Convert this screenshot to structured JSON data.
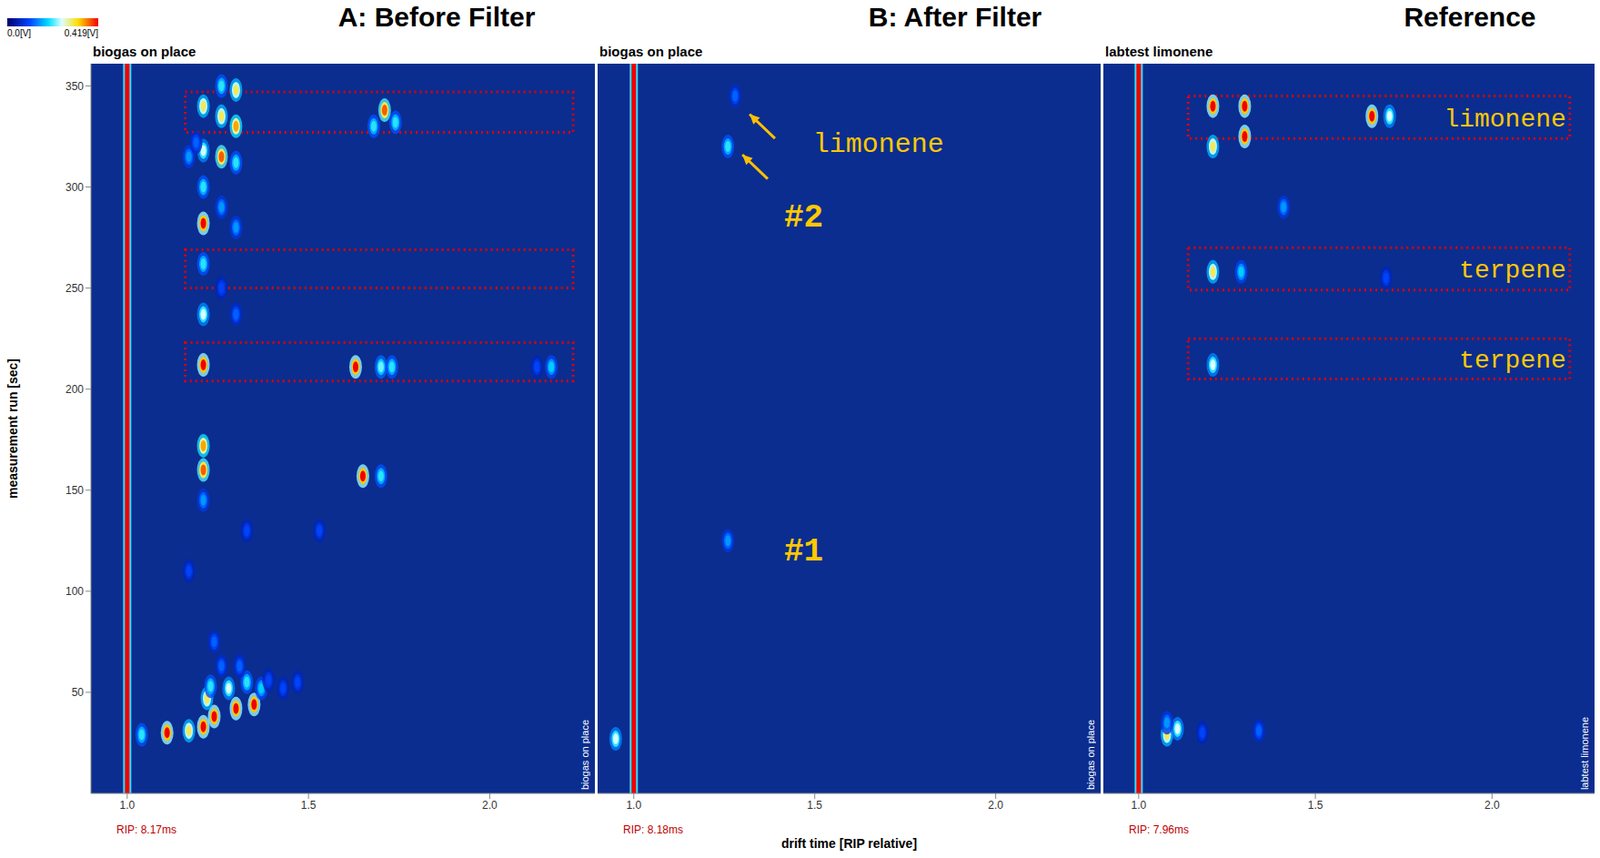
{
  "colorbar": {
    "range": [
      0,
      0.419
    ],
    "ticks": [
      {
        "value": 0,
        "label": "0.0[V]"
      },
      {
        "value": 0.419,
        "label": "0.419[V]"
      }
    ]
  },
  "chart_data": [
    {
      "type": "heatmap",
      "title": "A: Before Filter",
      "subtitle": "biogas on place",
      "side_label": "biogas on place",
      "rip_label": "RIP: 8.17ms",
      "rip": 1,
      "y_label": "measurement run [sec]",
      "tick_labels": true,
      "xlim": [
        0.9,
        2.29
      ],
      "xticks": [
        {
          "value": 1,
          "label": "1.0"
        },
        {
          "value": 1.5,
          "label": "1.5"
        },
        {
          "value": 2,
          "label": "2.0"
        }
      ],
      "ylim": [
        0,
        361
      ],
      "yticks": [
        50,
        100,
        150,
        200,
        250,
        300,
        350
      ],
      "peaks": [
        {
          "x": 1.21,
          "y": 340,
          "intensity": 0.3
        },
        {
          "x": 1.21,
          "y": 318,
          "intensity": 0.25
        },
        {
          "x": 1.21,
          "y": 282,
          "intensity": 0.42
        },
        {
          "x": 1.21,
          "y": 300,
          "intensity": 0.2
        },
        {
          "x": 1.21,
          "y": 262,
          "intensity": 0.2
        },
        {
          "x": 1.21,
          "y": 237,
          "intensity": 0.25
        },
        {
          "x": 1.21,
          "y": 212,
          "intensity": 0.42
        },
        {
          "x": 1.21,
          "y": 172,
          "intensity": 0.35
        },
        {
          "x": 1.21,
          "y": 160,
          "intensity": 0.38
        },
        {
          "x": 1.21,
          "y": 145,
          "intensity": 0.15
        },
        {
          "x": 1.26,
          "y": 350,
          "intensity": 0.2
        },
        {
          "x": 1.26,
          "y": 335,
          "intensity": 0.3
        },
        {
          "x": 1.26,
          "y": 315,
          "intensity": 0.38
        },
        {
          "x": 1.26,
          "y": 290,
          "intensity": 0.15
        },
        {
          "x": 1.26,
          "y": 250,
          "intensity": 0.1
        },
        {
          "x": 1.3,
          "y": 348,
          "intensity": 0.3
        },
        {
          "x": 1.3,
          "y": 330,
          "intensity": 0.35
        },
        {
          "x": 1.3,
          "y": 312,
          "intensity": 0.2
        },
        {
          "x": 1.3,
          "y": 280,
          "intensity": 0.15
        },
        {
          "x": 1.3,
          "y": 237,
          "intensity": 0.12
        },
        {
          "x": 1.17,
          "y": 315,
          "intensity": 0.15
        },
        {
          "x": 1.19,
          "y": 322,
          "intensity": 0.12
        },
        {
          "x": 1.71,
          "y": 338,
          "intensity": 0.38
        },
        {
          "x": 1.68,
          "y": 330,
          "intensity": 0.2
        },
        {
          "x": 1.74,
          "y": 332,
          "intensity": 0.2
        },
        {
          "x": 1.63,
          "y": 211,
          "intensity": 0.42
        },
        {
          "x": 1.7,
          "y": 211,
          "intensity": 0.22
        },
        {
          "x": 1.73,
          "y": 211,
          "intensity": 0.2
        },
        {
          "x": 2.17,
          "y": 211,
          "intensity": 0.18
        },
        {
          "x": 2.13,
          "y": 211,
          "intensity": 0.1
        },
        {
          "x": 1.65,
          "y": 157,
          "intensity": 0.42
        },
        {
          "x": 1.7,
          "y": 157,
          "intensity": 0.2
        },
        {
          "x": 1.11,
          "y": 30,
          "intensity": 0.42
        },
        {
          "x": 1.17,
          "y": 31,
          "intensity": 0.3
        },
        {
          "x": 1.21,
          "y": 33,
          "intensity": 0.42
        },
        {
          "x": 1.24,
          "y": 38,
          "intensity": 0.42
        },
        {
          "x": 1.3,
          "y": 42,
          "intensity": 0.42
        },
        {
          "x": 1.35,
          "y": 44,
          "intensity": 0.42
        },
        {
          "x": 1.04,
          "y": 29,
          "intensity": 0.2
        },
        {
          "x": 1.22,
          "y": 47,
          "intensity": 0.3
        },
        {
          "x": 1.23,
          "y": 53,
          "intensity": 0.2
        },
        {
          "x": 1.28,
          "y": 52,
          "intensity": 0.25
        },
        {
          "x": 1.33,
          "y": 55,
          "intensity": 0.2
        },
        {
          "x": 1.37,
          "y": 52,
          "intensity": 0.18
        },
        {
          "x": 1.39,
          "y": 56,
          "intensity": 0.1
        },
        {
          "x": 1.43,
          "y": 52,
          "intensity": 0.1
        },
        {
          "x": 1.47,
          "y": 55,
          "intensity": 0.1
        },
        {
          "x": 1.26,
          "y": 63,
          "intensity": 0.12
        },
        {
          "x": 1.31,
          "y": 63,
          "intensity": 0.12
        },
        {
          "x": 1.24,
          "y": 75,
          "intensity": 0.12
        },
        {
          "x": 1.17,
          "y": 110,
          "intensity": 0.1
        },
        {
          "x": 1.33,
          "y": 130,
          "intensity": 0.1
        },
        {
          "x": 1.53,
          "y": 130,
          "intensity": 0.1
        }
      ],
      "boxes": [
        {
          "x": [
            1.16,
            2.23
          ],
          "y": [
            327,
            347
          ]
        },
        {
          "x": [
            1.16,
            2.23
          ],
          "y": [
            250,
            269
          ]
        },
        {
          "x": [
            1.16,
            2.23
          ],
          "y": [
            204,
            223
          ]
        }
      ]
    },
    {
      "type": "heatmap",
      "title": "B: After Filter",
      "subtitle": "biogas on place",
      "side_label": "biogas on place",
      "rip_label": "RIP: 8.18ms",
      "rip": 1,
      "x_label": "drift time [RIP relative]",
      "tick_labels": "x",
      "xlim": [
        0.9,
        2.29
      ],
      "xticks": [
        {
          "value": 1,
          "label": "1.0"
        },
        {
          "value": 1.5,
          "label": "1.5"
        },
        {
          "value": 2,
          "label": "2.0"
        }
      ],
      "ylim": [
        0,
        361
      ],
      "yticks": [
        50,
        100,
        150,
        200,
        250,
        300,
        350
      ],
      "peaks": [
        {
          "x": 1.26,
          "y": 320,
          "intensity": 0.2
        },
        {
          "x": 1.28,
          "y": 345,
          "intensity": 0.12
        },
        {
          "x": 1.26,
          "y": 125,
          "intensity": 0.15
        },
        {
          "x": 0.95,
          "y": 27,
          "intensity": 0.25
        }
      ],
      "annotations": [
        {
          "text": "limonene",
          "x": 1.49,
          "y": 322
        },
        {
          "text": "#2",
          "x": 1.41,
          "y": 286
        },
        {
          "text": "#1",
          "x": 1.41,
          "y": 121
        }
      ],
      "arrows": [
        {
          "from": [
            1.39,
            324
          ],
          "to": [
            1.32,
            336
          ]
        },
        {
          "from": [
            1.37,
            304
          ],
          "to": [
            1.3,
            316
          ]
        }
      ]
    },
    {
      "type": "heatmap",
      "title": "Reference",
      "subtitle": "labtest limonene",
      "side_label": "labtest limonene",
      "rip_label": "RIP: 7.96ms",
      "rip": 1,
      "tick_labels": "x",
      "xlim": [
        0.9,
        2.29
      ],
      "xticks": [
        {
          "value": 1,
          "label": "1.0"
        },
        {
          "value": 1.5,
          "label": "1.5"
        },
        {
          "value": 2,
          "label": "2.0"
        }
      ],
      "ylim": [
        0,
        361
      ],
      "yticks": [
        50,
        100,
        150,
        200,
        250,
        300,
        350
      ],
      "peaks": [
        {
          "x": 1.21,
          "y": 340,
          "intensity": 0.42
        },
        {
          "x": 1.21,
          "y": 320,
          "intensity": 0.3
        },
        {
          "x": 1.3,
          "y": 340,
          "intensity": 0.42
        },
        {
          "x": 1.3,
          "y": 325,
          "intensity": 0.42
        },
        {
          "x": 1.66,
          "y": 335,
          "intensity": 0.42
        },
        {
          "x": 1.71,
          "y": 335,
          "intensity": 0.25
        },
        {
          "x": 1.41,
          "y": 290,
          "intensity": 0.15
        },
        {
          "x": 1.21,
          "y": 258,
          "intensity": 0.3
        },
        {
          "x": 1.29,
          "y": 258,
          "intensity": 0.18
        },
        {
          "x": 1.7,
          "y": 255,
          "intensity": 0.1
        },
        {
          "x": 1.21,
          "y": 212,
          "intensity": 0.25
        },
        {
          "x": 1.08,
          "y": 29,
          "intensity": 0.3
        },
        {
          "x": 1.11,
          "y": 32,
          "intensity": 0.25
        },
        {
          "x": 1.08,
          "y": 35,
          "intensity": 0.15
        },
        {
          "x": 1.18,
          "y": 30,
          "intensity": 0.1
        },
        {
          "x": 1.34,
          "y": 31,
          "intensity": 0.12
        }
      ],
      "boxes": [
        {
          "x": [
            1.14,
            2.22
          ],
          "y": [
            324,
            345
          ],
          "label": "limonene"
        },
        {
          "x": [
            1.14,
            2.22
          ],
          "y": [
            249,
            270
          ],
          "label": "terpene"
        },
        {
          "x": [
            1.14,
            2.22
          ],
          "y": [
            205,
            225
          ],
          "label": "terpene"
        }
      ]
    }
  ]
}
